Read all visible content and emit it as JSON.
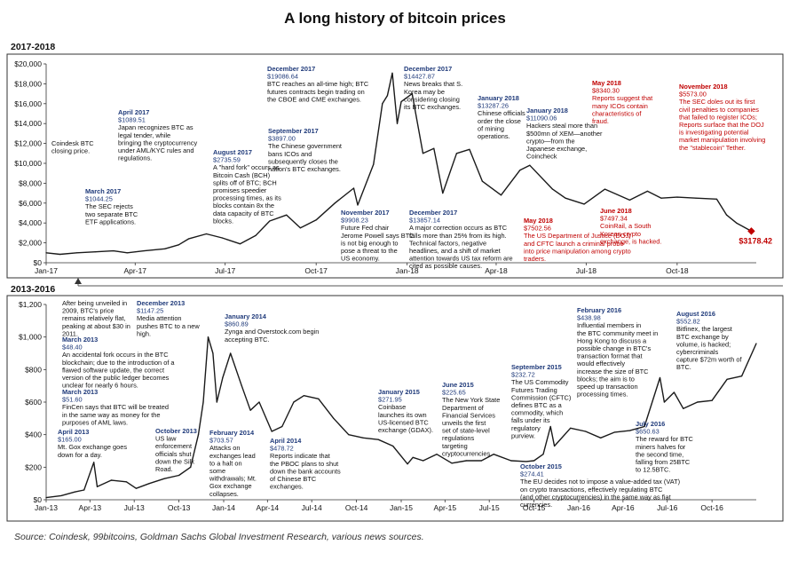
{
  "title": "A long history of bitcoin prices",
  "source": "Source: Coindesk, 99bitcoins, Goldman Sachs Global Investment Research, various news sources.",
  "colors": {
    "line": "#1a1a1a",
    "date": "#1f3a7a",
    "red": "#c00000",
    "frame": "#333333",
    "end_marker": "#c00000"
  },
  "chart_data": [
    {
      "type": "line",
      "panel_label": "2017-2018",
      "ylim": [
        0,
        20000
      ],
      "yticks": [
        0,
        2000,
        4000,
        6000,
        8000,
        10000,
        12000,
        14000,
        16000,
        18000,
        20000
      ],
      "ytick_labels": [
        "$0",
        "$2,000",
        "$4,000",
        "$6,000",
        "$8,000",
        "$10,000",
        "$12,000",
        "$14,000",
        "$16,000",
        "$18,000",
        "$20,000"
      ],
      "xlim": [
        "2017-01-01",
        "2018-12-20"
      ],
      "xticks": [
        "2017-01-01",
        "2017-04-01",
        "2017-07-01",
        "2017-10-01",
        "2018-01-01",
        "2018-04-01",
        "2018-07-01",
        "2018-10-01"
      ],
      "xtick_labels": [
        "Jan-17",
        "Apr-17",
        "Jul-17",
        "Oct-17",
        "Jan-18",
        "Apr-18",
        "Jul-18",
        "Oct-18"
      ],
      "end_label": "$3178.42",
      "series": [
        {
          "x": [
            "2017-01-01",
            "2017-01-15",
            "2017-02-01",
            "2017-02-20",
            "2017-03-10",
            "2017-03-24",
            "2017-04-10",
            "2017-05-01",
            "2017-05-15",
            "2017-05-25",
            "2017-06-12",
            "2017-06-28",
            "2017-07-16",
            "2017-08-01",
            "2017-08-15",
            "2017-09-01",
            "2017-09-15",
            "2017-10-01",
            "2017-10-20",
            "2017-11-08",
            "2017-11-12",
            "2017-11-28",
            "2017-12-07",
            "2017-12-12",
            "2017-12-17",
            "2017-12-22",
            "2017-12-26",
            "2018-01-06",
            "2018-01-17",
            "2018-01-28",
            "2018-02-06",
            "2018-02-20",
            "2018-03-05",
            "2018-03-18",
            "2018-04-06",
            "2018-04-25",
            "2018-05-05",
            "2018-05-28",
            "2018-06-10",
            "2018-06-29",
            "2018-07-20",
            "2018-08-14",
            "2018-09-01",
            "2018-09-15",
            "2018-10-01",
            "2018-10-20",
            "2018-11-10",
            "2018-11-20",
            "2018-11-30",
            "2018-12-15"
          ],
          "y": [
            1000,
            850,
            1000,
            1100,
            1200,
            1000,
            1200,
            1400,
            1800,
            2400,
            2900,
            2500,
            1900,
            2750,
            4200,
            4800,
            3500,
            4300,
            6000,
            7500,
            5800,
            9900,
            16000,
            16800,
            19080,
            14000,
            16200,
            17000,
            11000,
            11500,
            7000,
            11000,
            11400,
            8200,
            6800,
            9300,
            9800,
            7400,
            6500,
            5900,
            7400,
            6300,
            7200,
            6500,
            6600,
            6500,
            6400,
            4800,
            4000,
            3178
          ]
        }
      ],
      "annotations": [
        {
          "text": "Coindesk  BTC closing price.",
          "color": "black"
        },
        {
          "date": "March  2017",
          "price": "$1044.25",
          "text": "The SEC rejects two separate BTC ETF applications."
        },
        {
          "date": "April 2017",
          "price": "$1089.51",
          "text": "Japan recognizes BTC as legal tender, while bringing the cryptocurrency under AML/KYC rules and regulations."
        },
        {
          "date": "August 2017",
          "price": "$2735.59",
          "text": "A \"hard fork\" occurs as Bitcoin Cash (BCH) splits off of BTC; BCH promises speedier processing times, as its blocks contain 8x the data capacity of BTC blocks."
        },
        {
          "date": "September 2017",
          "price": "$3897.00",
          "text": "The Chinese government bans  ICOs and subsequently closes the nation's BTC exchanges."
        },
        {
          "date": "November 2017",
          "price": "$9908.23",
          "text": "Future Fed chair Jerome Powell says BTC is not big enough to pose a threat to the US economy."
        },
        {
          "date": "December 2017",
          "price": "$19086.64",
          "text": "BTC reaches an all-time high; BTC futures contracts begin trading on the CBOE and CME exchanges."
        },
        {
          "date": "December 2017",
          "price": "$14427.87",
          "text": "News breaks that S. Korea may be considering closing its BTC exchanges."
        },
        {
          "date": "December 2017",
          "price": "$13857.14",
          "text": "A major correction occurs as BTC falls more than 25% from its high. Technical factors, negative headlines, and a shift of market attention towards US tax reform are cited as possible causes."
        },
        {
          "date": "January 2018",
          "price": "$13287.26",
          "text": "Chinese officials order the close of mining operations."
        },
        {
          "date": "January 2018",
          "price": "$11090.06",
          "text": "Hackers steal more than $500mn of XEM—another crypto—from the Japanese exchange, Coincheck"
        },
        {
          "date": "May 2018",
          "price": "$8340.30",
          "text": "Reports suggest that many ICOs contain characteristics of fraud.",
          "color": "red"
        },
        {
          "date": "May 2018",
          "price": "$7502.56",
          "text": "The US Department of Justice (DOJ) and CFTC launch a criminal probe into price manipulation among crypto traders.",
          "color": "red"
        },
        {
          "date": "June 2018",
          "price": "$7497.34",
          "text": "CoinRail, a South Korean crypto exchange, is hacked.",
          "color": "red"
        },
        {
          "date": "November 2018",
          "price": "$5573.00",
          "text": "The SEC doles out its first civil penalties to companies that failed to register ICOs; Reports surface that the DOJ is investigating potential market manipulation involving the \"stablecoin\" Tether.",
          "color": "red"
        }
      ]
    },
    {
      "type": "line",
      "panel_label": "2013-2016",
      "ylim": [
        0,
        1200
      ],
      "yticks": [
        0,
        200,
        400,
        600,
        800,
        1000,
        1200
      ],
      "ytick_labels": [
        "$0",
        "$200",
        "$400",
        "$600",
        "$800",
        "$1,000",
        "$1,200"
      ],
      "xlim": [
        "2013-01-01",
        "2016-12-31"
      ],
      "xticks": [
        "2013-01-01",
        "2013-04-01",
        "2013-07-01",
        "2013-10-01",
        "2014-01-01",
        "2014-04-01",
        "2014-07-01",
        "2014-10-01",
        "2015-01-01",
        "2015-04-01",
        "2015-07-01",
        "2015-10-01",
        "2016-01-01",
        "2016-04-01",
        "2016-07-01",
        "2016-10-01"
      ],
      "xtick_labels": [
        "Jan-13",
        "Apr-13",
        "Jul-13",
        "Oct-13",
        "Jan-14",
        "Apr-14",
        "Jul-14",
        "Oct-14",
        "Jan-15",
        "Apr-15",
        "Jul-15",
        "Oct-15",
        "Jan-16",
        "Apr-16",
        "Jul-16",
        "Oct-16"
      ],
      "series": [
        {
          "x": [
            "2013-01-01",
            "2013-02-01",
            "2013-03-01",
            "2013-03-20",
            "2013-04-09",
            "2013-04-16",
            "2013-05-15",
            "2013-06-15",
            "2013-07-05",
            "2013-08-01",
            "2013-09-01",
            "2013-10-01",
            "2013-10-25",
            "2013-11-10",
            "2013-11-20",
            "2013-11-30",
            "2013-12-10",
            "2013-12-18",
            "2013-12-30",
            "2014-01-15",
            "2014-02-07",
            "2014-02-25",
            "2014-03-15",
            "2014-04-10",
            "2014-05-01",
            "2014-05-25",
            "2014-06-15",
            "2014-07-15",
            "2014-08-15",
            "2014-09-15",
            "2014-10-15",
            "2014-11-15",
            "2014-12-15",
            "2015-01-14",
            "2015-01-25",
            "2015-02-15",
            "2015-03-15",
            "2015-04-15",
            "2015-05-15",
            "2015-06-15",
            "2015-07-10",
            "2015-08-15",
            "2015-09-15",
            "2015-10-01",
            "2015-10-20",
            "2015-11-04",
            "2015-11-12",
            "2015-12-15",
            "2016-01-15",
            "2016-02-15",
            "2016-03-15",
            "2016-04-15",
            "2016-05-15",
            "2016-06-16",
            "2016-06-25",
            "2016-07-15",
            "2016-08-03",
            "2016-09-01",
            "2016-10-01",
            "2016-11-01",
            "2016-12-01",
            "2016-12-31"
          ],
          "y": [
            13,
            25,
            48,
            60,
            230,
            80,
            120,
            110,
            70,
            100,
            130,
            150,
            200,
            400,
            600,
            1000,
            900,
            600,
            750,
            900,
            700,
            550,
            600,
            420,
            450,
            600,
            640,
            620,
            500,
            400,
            380,
            370,
            330,
            220,
            260,
            240,
            280,
            225,
            240,
            240,
            280,
            240,
            235,
            240,
            280,
            450,
            330,
            440,
            420,
            380,
            415,
            425,
            450,
            750,
            600,
            660,
            560,
            600,
            610,
            740,
            760,
            960
          ]
        }
      ],
      "annotations": [
        {
          "text": "After being unveiled in 2009, BTC's price remains relatively flat, peaking at about $30 in 2011.",
          "color": "black"
        },
        {
          "date": "March 2013",
          "price": "$48.40",
          "text": "An accidental fork occurs in the BTC blockchain; due to the introduction of a flawed software update, the correct version of the public ledger becomes unclear for nearly 6 hours."
        },
        {
          "date": "March 2013",
          "price": "$51.60",
          "text": "FinCen says that BTC will be treated in the same way as money for the purposes of AML laws."
        },
        {
          "date": "April 2013",
          "price": "$165.00",
          "text": "Mt. Gox exchange goes down for a day."
        },
        {
          "date": "October 2013",
          "text": "US law enforcement officials shut down the Silk Road."
        },
        {
          "date": "December 2013",
          "price": "$1147.25",
          "text": "Media attention pushes BTC to a new high."
        },
        {
          "date": "January  2014",
          "price": "$860.89",
          "text": "Zynga and Overstock.com begin accepting BTC."
        },
        {
          "date": "February 2014",
          "price": "$703.57",
          "text": "Attacks on exchanges lead to a halt on some withdrawals; Mt. Gox exchange collapses."
        },
        {
          "date": "April 2014",
          "price": "$478.72",
          "text": "Reports indicate that the PBOC plans to shut down the bank accounts of Chinese BTC exchanges."
        },
        {
          "date": "January 2015",
          "price": "$271.95",
          "text": "Coinbase launches its own US-licensed BTC exchange (GDAX)."
        },
        {
          "date": "June 2015",
          "price": "$225.65",
          "text": "The New York State Department of Financial Services unveils the first set of state-level regulations targeting cryptocurrencies."
        },
        {
          "date": "September 2015",
          "price": "$232.72",
          "text": "The US Commodity Futures Trading Commission (CFTC) defines BTC as a commodity, which falls under its regulatory purview."
        },
        {
          "date": "October 2015",
          "price": "$274.41",
          "text": "The EU decides not to impose a value-added tax (VAT) on crypto transactions, effectively regulating BTC (and other cryptocurrencies) in the same way as fiat currencies."
        },
        {
          "date": "February 2016",
          "price": "$438.98",
          "text": "Influential members in the BTC community meet in Hong Kong to discuss a possible change in BTC's transaction format that would effectively increase the size of BTC blocks; the aim is to speed up transaction processing times."
        },
        {
          "date": "July 2016",
          "price": "$650.63",
          "text": "The reward for BTC miners halves for the second time, falling from 25BTC to 12.5BTC."
        },
        {
          "date": "August 2016",
          "price": "$552.82",
          "text": "Bitfinex, the largest BTC exchange by volume, is hacked; cybercriminals capture $72m worth of BTC."
        }
      ]
    }
  ]
}
